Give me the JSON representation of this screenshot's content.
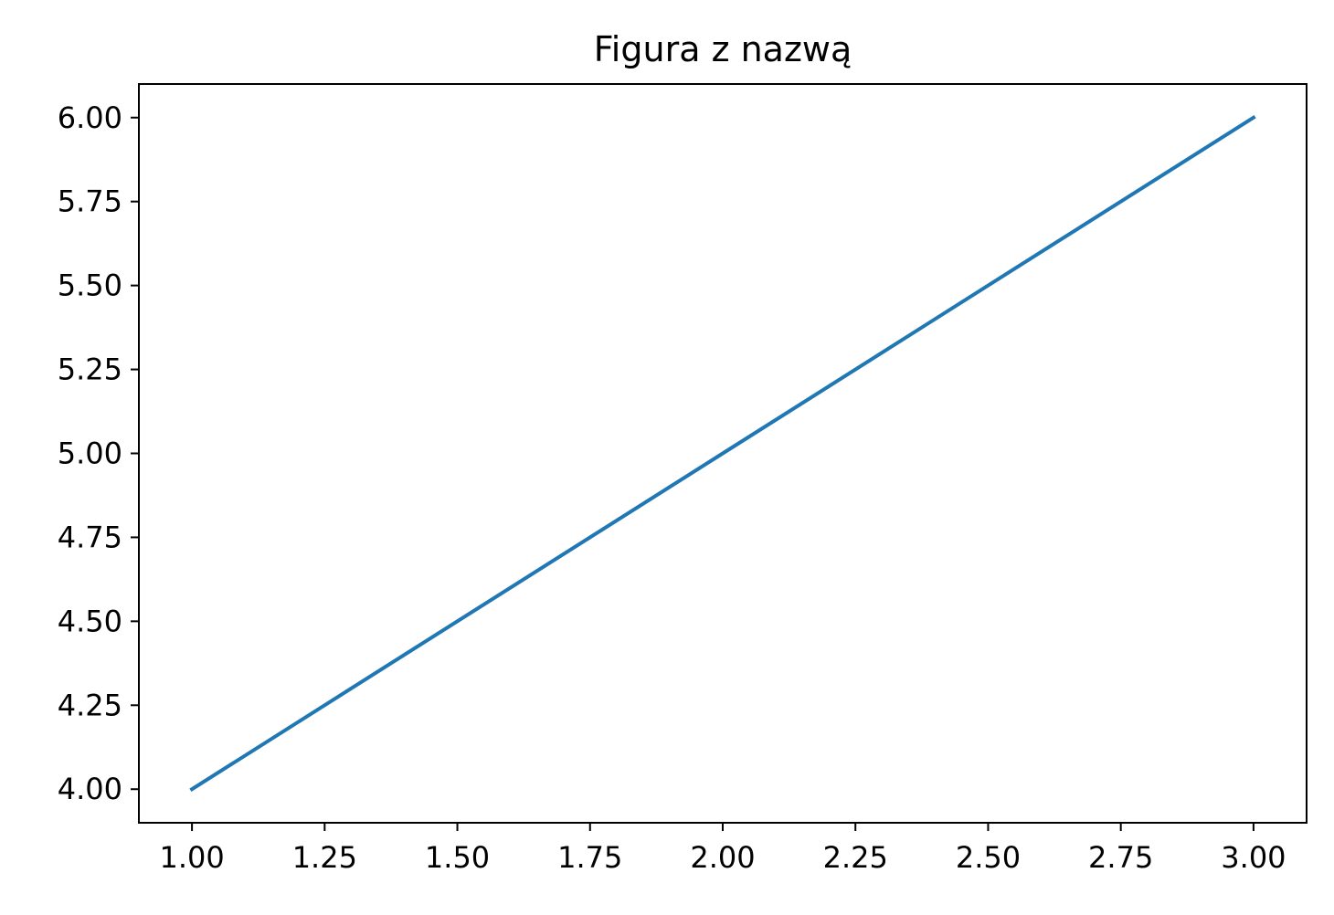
{
  "chart_data": {
    "type": "line",
    "title": "Figura z nazwą",
    "xlabel": "",
    "ylabel": "",
    "x": [
      1,
      2,
      3
    ],
    "series": [
      {
        "values": [
          4,
          5,
          6
        ],
        "color": "#1f77b4"
      }
    ],
    "xlim": [
      0.9,
      3.1
    ],
    "ylim": [
      3.9,
      6.1
    ],
    "xticks": [
      "1.00",
      "1.25",
      "1.50",
      "1.75",
      "2.00",
      "2.25",
      "2.50",
      "2.75",
      "3.00"
    ],
    "yticks": [
      "4.00",
      "4.25",
      "4.50",
      "4.75",
      "5.00",
      "5.25",
      "5.50",
      "5.75",
      "6.00"
    ],
    "grid": false,
    "legend": "none"
  }
}
